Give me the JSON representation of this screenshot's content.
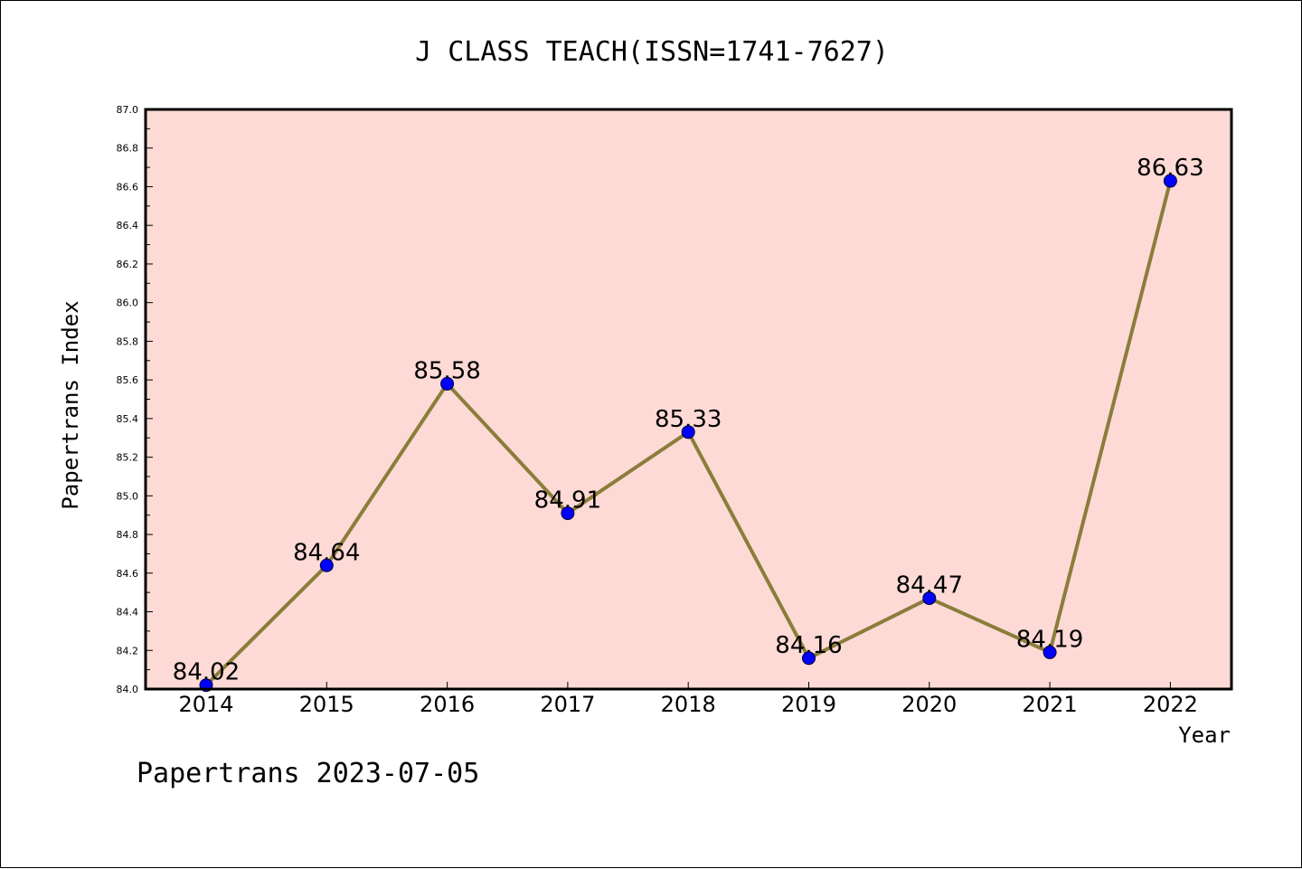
{
  "chart_data": {
    "type": "line",
    "title": "J CLASS TEACH(ISSN=1741-7627)",
    "xlabel": "Year",
    "ylabel": "Papertrans Index",
    "categories": [
      "2014",
      "2015",
      "2016",
      "2017",
      "2018",
      "2019",
      "2020",
      "2021",
      "2022"
    ],
    "series": [
      {
        "values": [
          84.02,
          84.64,
          85.58,
          84.91,
          85.33,
          84.16,
          84.47,
          84.19,
          86.63
        ],
        "labels": [
          "84.02",
          "84.64",
          "85.58",
          "84.91",
          "85.33",
          "84.16",
          "84.47",
          "84.19",
          "86.63"
        ]
      }
    ],
    "ylim": [
      84.0,
      87.0
    ],
    "yticks": [
      "84.0",
      "84.2",
      "84.4",
      "84.6",
      "84.8",
      "85.0",
      "85.2",
      "85.4",
      "85.6",
      "85.8",
      "86.0",
      "86.2",
      "86.4",
      "86.6",
      "86.8",
      "87.0"
    ],
    "grid": false,
    "legend": "none",
    "colors": {
      "plot_background": "#fddad6",
      "line": "#8b7d3a",
      "marker": "#0000ff"
    }
  },
  "footer": "Papertrans 2023-07-05"
}
